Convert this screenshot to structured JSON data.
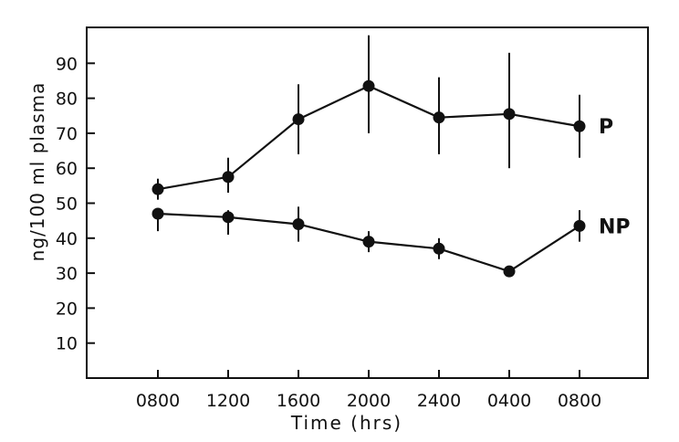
{
  "chart_data": {
    "type": "line",
    "title": "",
    "xlabel": "Time (hrs)",
    "ylabel": "ng/100 ml plasma",
    "categories": [
      "0800",
      "1200",
      "1600",
      "2000",
      "2400",
      "0400",
      "0800"
    ],
    "ylim": [
      0,
      100
    ],
    "yticks": [
      10,
      20,
      30,
      40,
      50,
      60,
      70,
      80,
      90
    ],
    "grid": false,
    "legend": "none",
    "series": [
      {
        "name": "P",
        "values": [
          54,
          57.5,
          74,
          83.5,
          74.5,
          75.5,
          72
        ],
        "error_low": [
          51,
          53,
          64,
          70,
          64,
          60,
          63
        ],
        "error_high": [
          57,
          63,
          84,
          98,
          86,
          93,
          81
        ]
      },
      {
        "name": "NP",
        "values": [
          47,
          46,
          44,
          39,
          37,
          30.5,
          43.5
        ],
        "error_low": [
          42,
          41,
          39,
          36,
          34,
          30,
          39
        ],
        "error_high": [
          48,
          48,
          49,
          42,
          40,
          31,
          48
        ]
      }
    ],
    "colors": {
      "line": "#111111",
      "marker": "#111111",
      "background": "#ffffff"
    }
  }
}
